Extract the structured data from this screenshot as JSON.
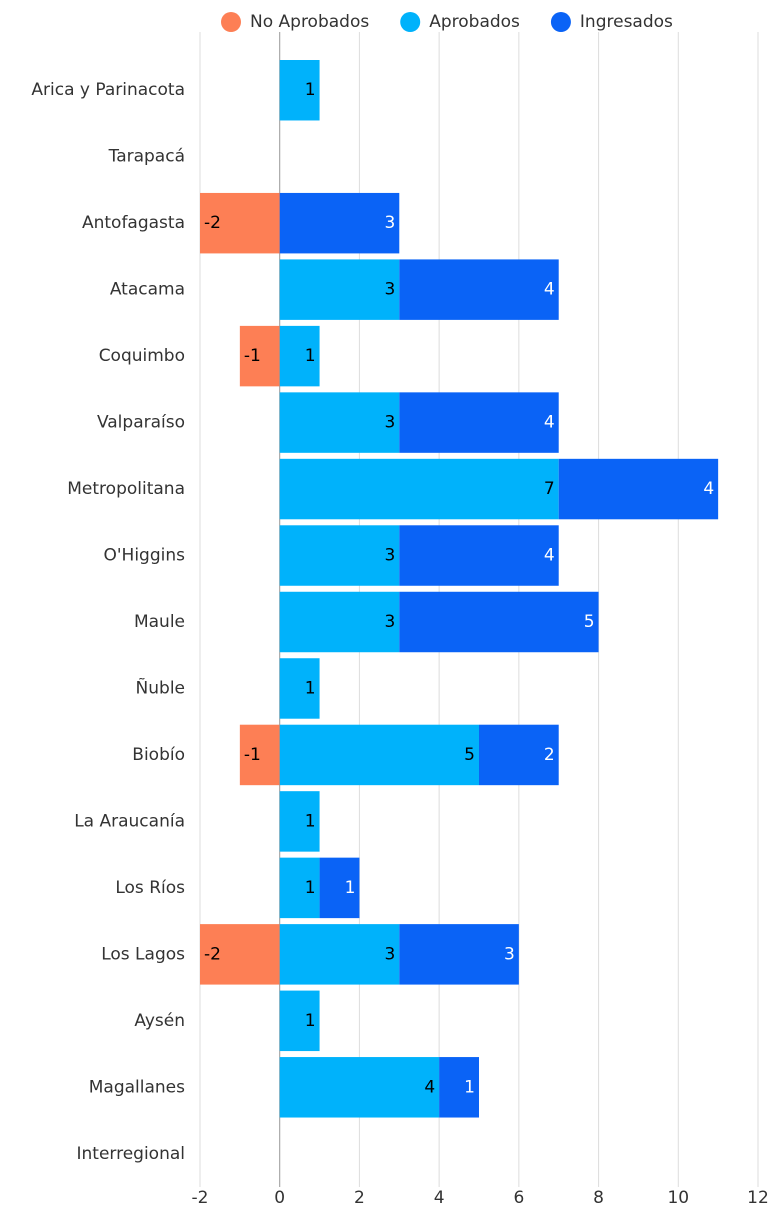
{
  "chart_data": {
    "type": "stacked-barh",
    "categories": [
      "Arica y Parinacota",
      "Tarapacá",
      "Antofagasta",
      "Atacama",
      "Coquimbo",
      "Valparaíso",
      "Metropolitana",
      "O'Higgins",
      "Maule",
      "Ñuble",
      "Biobío",
      "La Araucanía",
      "Los Ríos",
      "Los Lagos",
      "Aysén",
      "Magallanes",
      "Interregional"
    ],
    "series": [
      {
        "name": "No Aprobados",
        "color": "#fd7f55",
        "label_color": "#000000",
        "values": [
          null,
          null,
          -2,
          null,
          -1,
          null,
          null,
          null,
          null,
          null,
          -1,
          null,
          null,
          -2,
          null,
          null,
          null
        ]
      },
      {
        "name": "Aprobados",
        "color": "#00b2fb",
        "label_color": "#000000",
        "values": [
          1,
          null,
          null,
          3,
          1,
          3,
          7,
          3,
          3,
          1,
          5,
          1,
          1,
          3,
          1,
          4,
          null
        ]
      },
      {
        "name": "Ingresados",
        "color": "#0a63f6",
        "label_color": "#ffffff",
        "values": [
          null,
          null,
          3,
          4,
          null,
          4,
          4,
          4,
          5,
          null,
          2,
          null,
          1,
          3,
          null,
          1,
          null
        ]
      }
    ],
    "xlim": [
      -2,
      12
    ],
    "xticks": [
      -2,
      0,
      2,
      4,
      6,
      8,
      10,
      12
    ],
    "grid": true,
    "legend": "top"
  }
}
